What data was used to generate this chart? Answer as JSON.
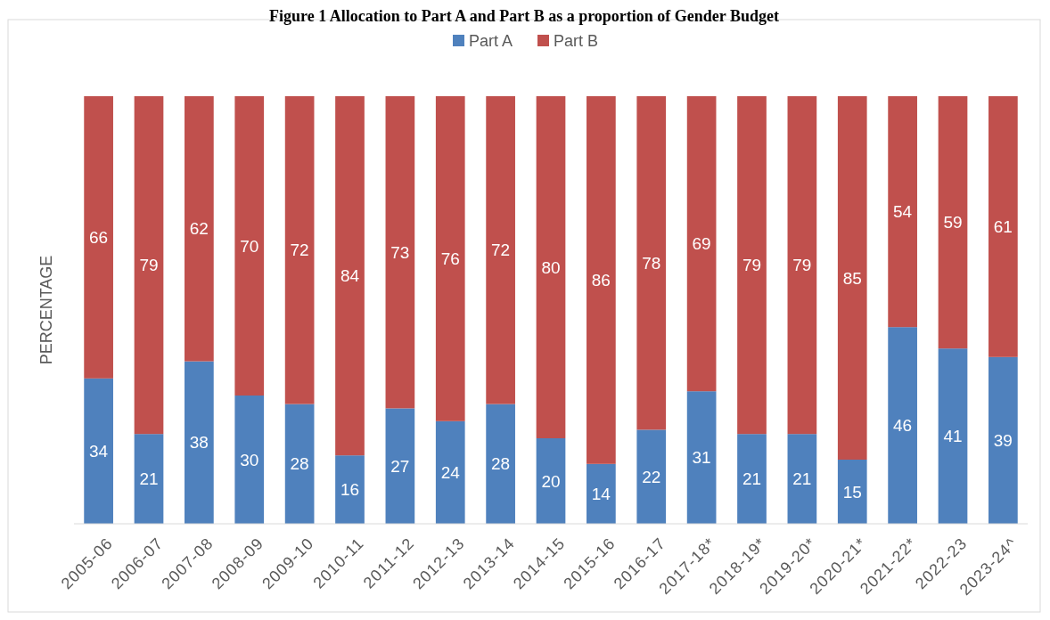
{
  "chart_data": {
    "type": "bar",
    "title": "Figure 1 Allocation to Part A and Part B as a proportion of Gender Budget",
    "ylabel": "PERCENTAGE",
    "categories": [
      "2005-06",
      "2006-07",
      "2007-08",
      "2008-09",
      "2009-10",
      "2010-11",
      "2011-12",
      "2012-13",
      "2013-14",
      "2014-15",
      "2015-16",
      "2016-17",
      "2017-18*",
      "2018-19*",
      "2019-20*",
      "2020-21*",
      "2021-22*",
      "2022-23",
      "2023-24^"
    ],
    "series": [
      {
        "name": "Part A",
        "color": "#4f81bd",
        "values": [
          34,
          21,
          38,
          30,
          28,
          16,
          27,
          24,
          28,
          20,
          14,
          22,
          31,
          21,
          21,
          15,
          46,
          41,
          39
        ]
      },
      {
        "name": "Part B",
        "color": "#c0504d",
        "values": [
          66,
          79,
          62,
          70,
          72,
          84,
          73,
          76,
          72,
          80,
          86,
          78,
          69,
          79,
          79,
          85,
          54,
          59,
          61
        ]
      }
    ],
    "stacked": true,
    "ylim": [
      0,
      100
    ],
    "data_labels": true,
    "legend": "top",
    "tick_labels": "x"
  }
}
